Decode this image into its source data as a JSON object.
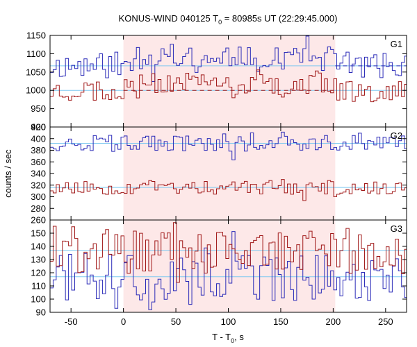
{
  "chart_data": {
    "type": "line",
    "title_main": "KONUS-WIND 040125 T",
    "title_sub": "0",
    "title_rest": " = 80985s UT (22:29:45.000)",
    "xlabel_main": "T - T",
    "xlabel_sub": "0",
    "xlabel_rest": ", s",
    "ylabel": "counts / sec",
    "xlim": [
      -70,
      270
    ],
    "x_ticks": [
      -50,
      0,
      50,
      100,
      150,
      200,
      250
    ],
    "shaded_interval": [
      0,
      202
    ],
    "colors": {
      "shade": "#fde8e8",
      "blue": "#2a2ab8",
      "red": "#a01818",
      "fit": "#7ec8f0"
    },
    "panels": [
      {
        "label": "G1",
        "ylim": [
          900,
          1150
        ],
        "y_ticks": [
          900,
          950,
          1000,
          1050,
          1100,
          1150
        ],
        "levels": {
          "blue": 1067,
          "red": 1000
        },
        "dashed": true,
        "series": [
          {
            "color": "blue",
            "seed": 11,
            "noise": 35,
            "burst": 30
          },
          {
            "color": "red",
            "seed": 23,
            "noise": 32,
            "burst": 22
          }
        ]
      },
      {
        "label": "G2",
        "ylim": [
          260,
          420
        ],
        "y_ticks": [
          260,
          280,
          300,
          320,
          340,
          360,
          380,
          400,
          420
        ],
        "levels": {
          "blue": 392,
          "red": 316
        },
        "dashed": false,
        "series": [
          {
            "color": "blue",
            "seed": 37,
            "noise": 14,
            "burst": 0
          },
          {
            "color": "red",
            "seed": 53,
            "noise": 12,
            "burst": 0
          }
        ]
      },
      {
        "label": "G3",
        "ylim": [
          90,
          160
        ],
        "y_ticks": [
          90,
          100,
          110,
          120,
          130,
          140,
          150
        ],
        "levels": {
          "blue": 117,
          "red": 137
        },
        "dashed": false,
        "series": [
          {
            "color": "blue",
            "seed": 71,
            "noise": 18,
            "burst": 0
          },
          {
            "color": "red",
            "seed": 89,
            "noise": 18,
            "burst": 0
          }
        ]
      }
    ]
  }
}
